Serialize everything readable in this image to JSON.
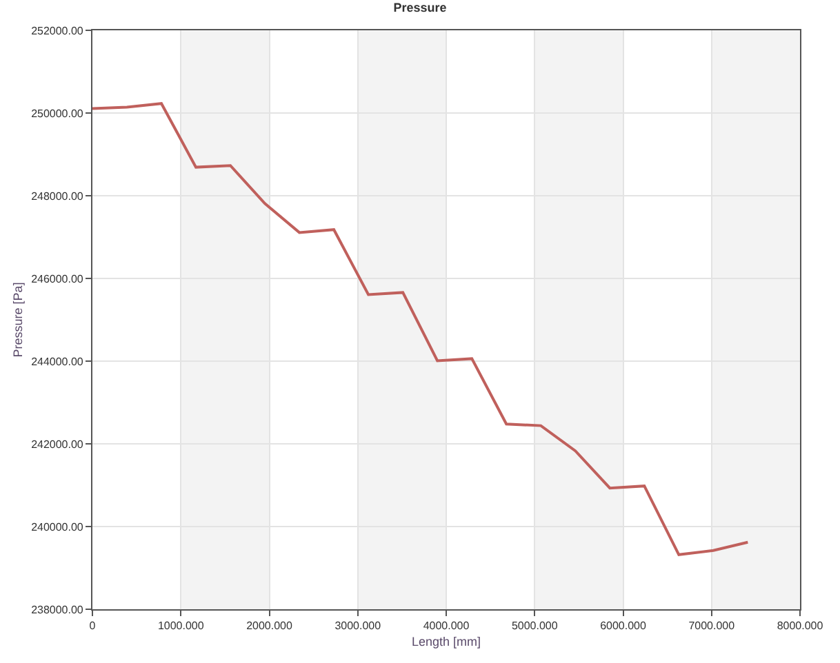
{
  "chart_data": {
    "type": "line",
    "title": "Pressure",
    "xlabel": "Length [mm]",
    "ylabel": "Pressure [Pa]",
    "x": [
      0,
      390,
      780,
      1170,
      1560,
      1950,
      2340,
      2730,
      3120,
      3510,
      3900,
      4290,
      4680,
      5070,
      5460,
      5850,
      6240,
      6630,
      7020,
      7410
    ],
    "series": [
      {
        "color": "#c0605c",
        "values": [
          250110,
          250140,
          250230,
          248690,
          248730,
          247810,
          247110,
          247180,
          245610,
          245660,
          244010,
          244060,
          242480,
          242440,
          241830,
          240930,
          240980,
          239320,
          239420,
          239620
        ]
      }
    ],
    "xlim": [
      0,
      8000
    ],
    "xticks": [
      0,
      {
        "value": 1000,
        "label": "1000.000"
      },
      {
        "value": 2000,
        "label": "2000.000"
      },
      {
        "value": 3000,
        "label": "3000.000"
      },
      {
        "value": 4000,
        "label": "4000.000"
      },
      {
        "value": 5000,
        "label": "5000.000"
      },
      {
        "value": 6000,
        "label": "6000.000"
      },
      {
        "value": 7000,
        "label": "7000.000"
      },
      {
        "value": 8000,
        "label": "8000.000"
      }
    ],
    "ylim": [
      238000,
      252000
    ],
    "yticks": [
      {
        "value": 238000,
        "label": "238000.00"
      },
      {
        "value": 240000,
        "label": "240000.00"
      },
      {
        "value": 242000,
        "label": "242000.00"
      },
      {
        "value": 244000,
        "label": "244000.00"
      },
      {
        "value": 246000,
        "label": "246000.00"
      },
      {
        "value": 248000,
        "label": "248000.00"
      },
      {
        "value": 250000,
        "label": "250000.00"
      },
      {
        "value": 252000,
        "label": "252000.00"
      }
    ],
    "bands": [
      {
        "axis": "x",
        "from": 1000,
        "to": 2000,
        "color": "#f3f3f3"
      },
      {
        "axis": "x",
        "from": 3000,
        "to": 4000,
        "color": "#f3f3f3"
      },
      {
        "axis": "x",
        "from": 5000,
        "to": 6000,
        "color": "#f3f3f3"
      },
      {
        "axis": "x",
        "from": 7000,
        "to": 8000,
        "color": "#f3f3f3"
      }
    ],
    "grid": true,
    "marker": "none",
    "line_style": "solid"
  }
}
